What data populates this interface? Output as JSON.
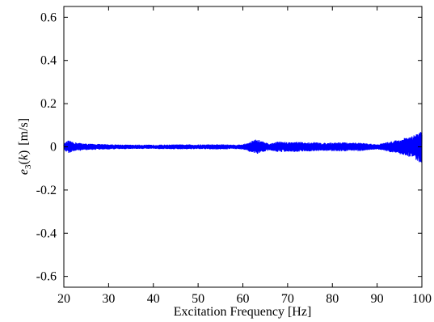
{
  "chart_data": {
    "type": "line",
    "title": "",
    "xlabel": "Excitation Frequency [Hz]",
    "ylabel": {
      "symbol": "e",
      "subscript": "3",
      "arg_open": "(",
      "arg": "k",
      "arg_close": ")",
      "unit": "[m/s]"
    },
    "xlim": [
      20,
      100
    ],
    "ylim": [
      -0.65,
      0.65
    ],
    "x_ticks": [
      20,
      30,
      40,
      50,
      60,
      70,
      80,
      90,
      100
    ],
    "x_tick_labels": [
      "20",
      "30",
      "40",
      "50",
      "60",
      "70",
      "80",
      "90",
      "100"
    ],
    "y_ticks": [
      -0.6,
      -0.4,
      -0.2,
      0,
      0.2,
      0.4,
      0.6
    ],
    "y_tick_labels": [
      "-0.6",
      "-0.4",
      "-0.2",
      "0",
      "0.2",
      "0.4",
      "0.6"
    ],
    "grid": false,
    "line_color": "#0000ff",
    "series": [
      {
        "x": [
          20,
          21,
          22,
          25,
          30,
          35,
          40,
          45,
          50,
          55,
          58,
          60,
          61,
          62,
          63,
          64,
          65,
          66,
          68,
          70,
          72,
          74,
          76,
          78,
          80,
          82,
          84,
          86,
          88,
          90,
          92,
          94,
          96,
          98,
          99,
          100
        ],
        "amplitude": [
          0.015,
          0.03,
          0.022,
          0.015,
          0.012,
          0.01,
          0.01,
          0.011,
          0.011,
          0.012,
          0.01,
          0.012,
          0.018,
          0.028,
          0.035,
          0.03,
          0.02,
          0.015,
          0.025,
          0.022,
          0.024,
          0.02,
          0.022,
          0.018,
          0.02,
          0.022,
          0.018,
          0.02,
          0.015,
          0.012,
          0.02,
          0.03,
          0.04,
          0.05,
          0.065,
          0.08
        ]
      }
    ]
  }
}
